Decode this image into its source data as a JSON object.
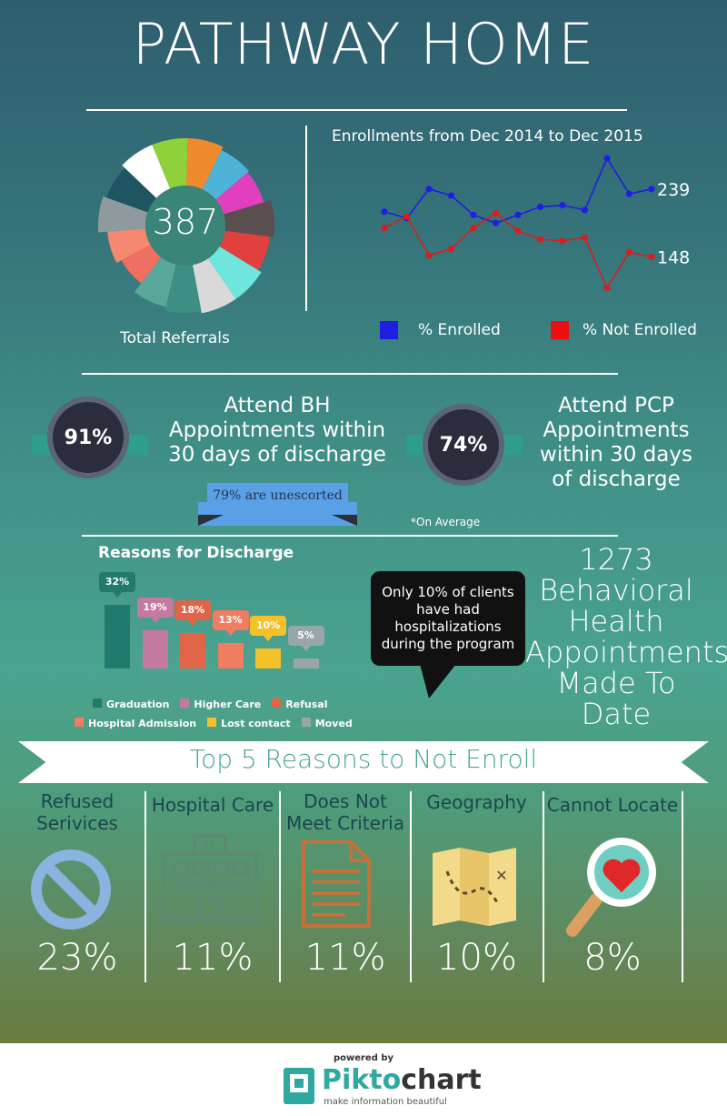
{
  "header": {
    "title": "PATHWAY HOME"
  },
  "referrals": {
    "total": "387",
    "label": "Total Referrals",
    "slices": [
      {
        "color": "#8fd13a"
      },
      {
        "color": "#ef8a2e"
      },
      {
        "color": "#4fb3d9"
      },
      {
        "color": "#e23fbe"
      },
      {
        "color": "#5a4e4e"
      },
      {
        "color": "#e0403e"
      },
      {
        "color": "#6fe6dd"
      },
      {
        "color": "#d9d9d9"
      },
      {
        "color": "#3c8f82"
      },
      {
        "color": "#58a79a"
      },
      {
        "color": "#ef7060"
      },
      {
        "color": "#f4896f"
      },
      {
        "color": "#8e9a9d"
      },
      {
        "color": "#1e5560"
      },
      {
        "color": "#ffffff"
      }
    ]
  },
  "chart_data": [
    {
      "type": "line",
      "title": "Enrollments from Dec 2014 to Dec 2015",
      "x": [
        1,
        2,
        3,
        4,
        5,
        6,
        7,
        8,
        9,
        10,
        11,
        12,
        13
      ],
      "series": [
        {
          "name": "% Enrolled",
          "color": "#1f1fe0",
          "values": [
            58,
            54,
            72,
            68,
            56,
            51,
            56,
            61,
            62,
            59,
            91,
            69,
            72
          ],
          "end_label": "239"
        },
        {
          "name": "% Not Enrolled",
          "color": "#d81e1e",
          "values": [
            48,
            55,
            31,
            35,
            48,
            57,
            46,
            41,
            40,
            42,
            11,
            33,
            30
          ],
          "end_label": "148"
        }
      ],
      "ylim": [
        0,
        100
      ],
      "legend": [
        "% Enrolled",
        "% Not Enrolled"
      ]
    },
    {
      "type": "bar",
      "title": "Reasons for Discharge",
      "categories": [
        "Graduation",
        "Higher Care",
        "Refusal",
        "Hospital Admission",
        "Lost contact",
        "Moved"
      ],
      "values": [
        32,
        19,
        18,
        13,
        10,
        5
      ],
      "value_labels": [
        "32%",
        "19%",
        "18%",
        "13%",
        "10%",
        "5%"
      ],
      "colors": [
        "#217a6c",
        "#c47aa0",
        "#e06548",
        "#f07c62",
        "#f5c12b",
        "#98a6a8"
      ]
    }
  ],
  "stats": {
    "bh": {
      "value": "91%",
      "line1": "Attend BH",
      "line2": "Appointments within",
      "line3": "30 days of discharge"
    },
    "pcp": {
      "value": "74%",
      "line1": "Attend PCP",
      "line2": "Appointments",
      "line3": "within 30 days",
      "line4": "of discharge"
    },
    "unescorted": "79% are unescorted",
    "avg_note": "*On Average"
  },
  "hospital_note": {
    "line1": "Only 10% of clients",
    "line2": "have had",
    "line3": "hospitalizations",
    "line4": "during the program"
  },
  "bh_total": {
    "line1": "1273",
    "line2": "Behavioral",
    "line3": "Health",
    "line4": "Appointments",
    "line5": "Made To",
    "line6": "Date"
  },
  "top5": {
    "title": "Top 5 Reasons to Not Enroll",
    "items": [
      {
        "label1": "Refused",
        "label2": "Serivices",
        "pct": "23%",
        "icon": "prohibited-icon"
      },
      {
        "label1": "Hospital Care",
        "label2": "",
        "pct": "11%",
        "icon": "hospital-icon"
      },
      {
        "label1": "Does Not",
        "label2": "Meet Criteria",
        "pct": "11%",
        "icon": "document-icon"
      },
      {
        "label1": "Geography",
        "label2": "",
        "pct": "10%",
        "icon": "map-icon"
      },
      {
        "label1": "Cannot Locate",
        "label2": "",
        "pct": "8%",
        "icon": "magnifier-heart-icon"
      }
    ]
  },
  "footer": {
    "powered_by": "powered by",
    "brand_a": "Pikto",
    "brand_b": "chart",
    "tagline": "make information beautiful"
  }
}
